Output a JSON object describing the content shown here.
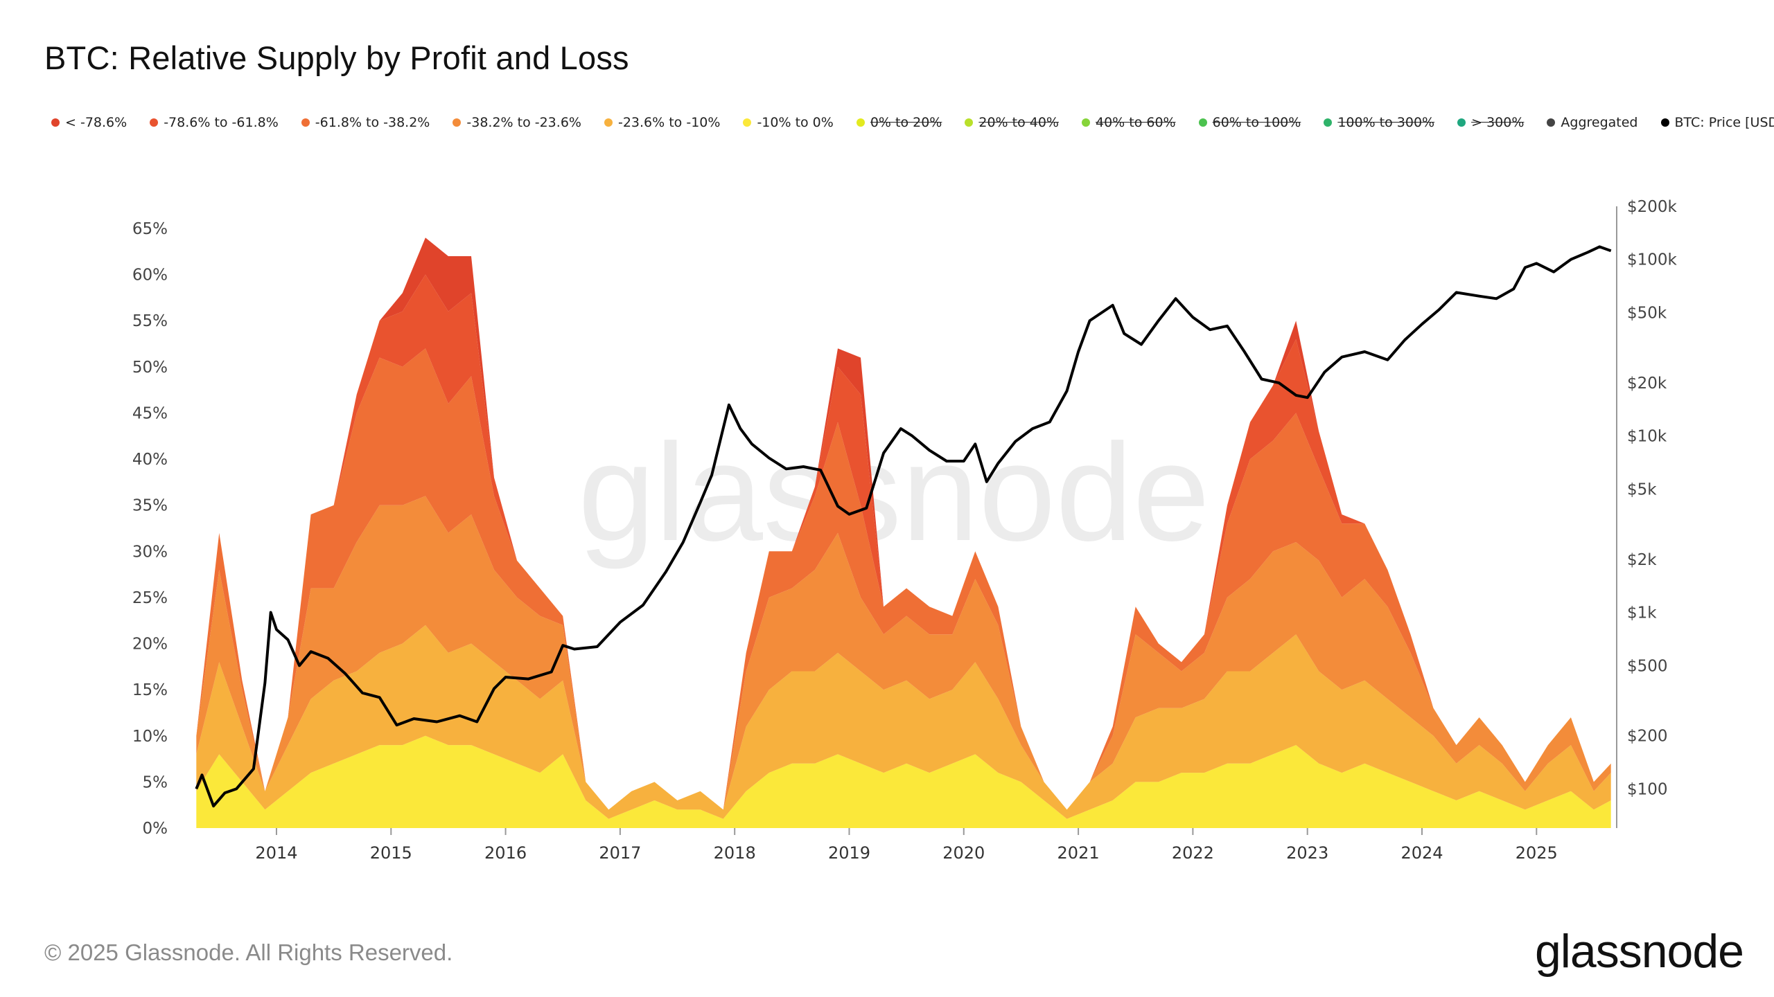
{
  "title": "BTC: Relative Supply by Profit and Loss",
  "footer": {
    "copyright": "© 2025 Glassnode. All Rights Reserved.",
    "brand": "glassnode"
  },
  "watermark": "glassnode",
  "legend": [
    {
      "label": "< -78.6%",
      "color": "#e0442b",
      "enabled": true
    },
    {
      "label": "-78.6% to -61.8%",
      "color": "#e9532f",
      "enabled": true
    },
    {
      "label": "-61.8% to -38.2%",
      "color": "#ef6f35",
      "enabled": true
    },
    {
      "label": "-38.2% to -23.6%",
      "color": "#f38c3a",
      "enabled": true
    },
    {
      "label": "-23.6% to -10%",
      "color": "#f7b13e",
      "enabled": true
    },
    {
      "label": "-10% to 0%",
      "color": "#fbe83a",
      "enabled": true
    },
    {
      "label": "0% to 20%",
      "color": "#e3ea1f",
      "enabled": false
    },
    {
      "label": "20% to 40%",
      "color": "#b9e02a",
      "enabled": false
    },
    {
      "label": "40% to 60%",
      "color": "#86d43a",
      "enabled": false
    },
    {
      "label": "60% to 100%",
      "color": "#4cc24f",
      "enabled": false
    },
    {
      "label": "100% to 300%",
      "color": "#2fb36a",
      "enabled": false
    },
    {
      "label": "> 300%",
      "color": "#1fa77f",
      "enabled": false
    },
    {
      "label": "Aggregated",
      "color": "#444444",
      "enabled": true
    },
    {
      "label": "BTC: Price [USD]",
      "color": "#000000",
      "enabled": true
    }
  ],
  "chart_data": {
    "type": "area",
    "stacked": true,
    "ylabel_left_ticks": [
      "0%",
      "5%",
      "10%",
      "15%",
      "20%",
      "25%",
      "30%",
      "35%",
      "40%",
      "45%",
      "50%",
      "55%",
      "60%",
      "65%"
    ],
    "ylim_left": [
      0,
      65
    ],
    "ylabel_right_ticks": [
      "$100",
      "$200",
      "$500",
      "$1k",
      "$2k",
      "$5k",
      "$10k",
      "$20k",
      "$50k",
      "$100k",
      "$200k"
    ],
    "ylim_right": [
      60,
      200000
    ],
    "right_axis_scale": "log",
    "x_ticks": [
      "2014",
      "2015",
      "2016",
      "2017",
      "2018",
      "2019",
      "2020",
      "2021",
      "2022",
      "2023",
      "2024",
      "2025"
    ],
    "xlim": [
      2013.25,
      2025.7
    ],
    "series": [
      {
        "name": "-10% to 0%",
        "x": [
          2013.3,
          2013.5,
          2013.7,
          2013.9,
          2014.1,
          2014.3,
          2014.5,
          2014.7,
          2014.9,
          2015.1,
          2015.3,
          2015.5,
          2015.7,
          2015.9,
          2016.1,
          2016.3,
          2016.5,
          2016.7,
          2016.9,
          2017.1,
          2017.3,
          2017.5,
          2017.7,
          2017.9,
          2018.1,
          2018.3,
          2018.5,
          2018.7,
          2018.9,
          2019.1,
          2019.3,
          2019.5,
          2019.7,
          2019.9,
          2020.1,
          2020.3,
          2020.5,
          2020.7,
          2020.9,
          2021.1,
          2021.3,
          2021.5,
          2021.7,
          2021.9,
          2022.1,
          2022.3,
          2022.5,
          2022.7,
          2022.9,
          2023.1,
          2023.3,
          2023.5,
          2023.7,
          2023.9,
          2024.1,
          2024.3,
          2024.5,
          2024.7,
          2024.9,
          2025.1,
          2025.3,
          2025.5,
          2025.65
        ],
        "values": [
          4,
          8,
          5,
          2,
          4,
          6,
          7,
          8,
          9,
          9,
          10,
          9,
          9,
          8,
          7,
          6,
          8,
          3,
          1,
          2,
          3,
          2,
          2,
          1,
          4,
          6,
          7,
          7,
          8,
          7,
          6,
          7,
          6,
          7,
          8,
          6,
          5,
          3,
          1,
          2,
          3,
          5,
          5,
          6,
          6,
          7,
          7,
          8,
          9,
          7,
          6,
          7,
          6,
          5,
          4,
          3,
          4,
          3,
          2,
          3,
          4,
          2,
          3
        ]
      },
      {
        "name": "-23.6% to -10%",
        "x": [
          2013.3,
          2013.5,
          2013.7,
          2013.9,
          2014.1,
          2014.3,
          2014.5,
          2014.7,
          2014.9,
          2015.1,
          2015.3,
          2015.5,
          2015.7,
          2015.9,
          2016.1,
          2016.3,
          2016.5,
          2016.7,
          2016.9,
          2017.1,
          2017.3,
          2017.5,
          2017.7,
          2017.9,
          2018.1,
          2018.3,
          2018.5,
          2018.7,
          2018.9,
          2019.1,
          2019.3,
          2019.5,
          2019.7,
          2019.9,
          2020.1,
          2020.3,
          2020.5,
          2020.7,
          2020.9,
          2021.1,
          2021.3,
          2021.5,
          2021.7,
          2021.9,
          2022.1,
          2022.3,
          2022.5,
          2022.7,
          2022.9,
          2023.1,
          2023.3,
          2023.5,
          2023.7,
          2023.9,
          2024.1,
          2024.3,
          2024.5,
          2024.7,
          2024.9,
          2025.1,
          2025.3,
          2025.5,
          2025.65
        ],
        "values": [
          4,
          10,
          6,
          2,
          5,
          8,
          9,
          9,
          10,
          11,
          12,
          10,
          11,
          10,
          9,
          8,
          8,
          2,
          1,
          2,
          2,
          1,
          2,
          1,
          7,
          9,
          10,
          10,
          11,
          10,
          9,
          9,
          8,
          8,
          10,
          8,
          4,
          2,
          1,
          3,
          4,
          7,
          8,
          7,
          8,
          10,
          10,
          11,
          12,
          10,
          9,
          9,
          8,
          7,
          6,
          4,
          5,
          4,
          2,
          4,
          5,
          2,
          3
        ]
      },
      {
        "name": "-38.2% to -23.6%",
        "x": [
          2013.3,
          2013.5,
          2013.7,
          2013.9,
          2014.1,
          2014.3,
          2014.5,
          2014.7,
          2014.9,
          2015.1,
          2015.3,
          2015.5,
          2015.7,
          2015.9,
          2016.1,
          2016.3,
          2016.5,
          2016.7,
          2016.9,
          2017.1,
          2017.3,
          2017.5,
          2017.7,
          2017.9,
          2018.1,
          2018.3,
          2018.5,
          2018.7,
          2018.9,
          2019.1,
          2019.3,
          2019.5,
          2019.7,
          2019.9,
          2020.1,
          2020.3,
          2020.5,
          2020.7,
          2020.9,
          2021.1,
          2021.3,
          2021.5,
          2021.7,
          2021.9,
          2022.1,
          2022.3,
          2022.5,
          2022.7,
          2022.9,
          2023.1,
          2023.3,
          2023.5,
          2023.7,
          2023.9,
          2024.1,
          2024.3,
          2024.5,
          2024.7,
          2024.9,
          2025.1,
          2025.3,
          2025.5,
          2025.65
        ],
        "values": [
          2,
          10,
          4,
          0,
          3,
          12,
          10,
          14,
          16,
          15,
          14,
          13,
          14,
          10,
          9,
          9,
          6,
          0,
          0,
          0,
          0,
          0,
          0,
          0,
          6,
          10,
          9,
          11,
          13,
          8,
          6,
          7,
          7,
          6,
          9,
          8,
          2,
          0,
          0,
          0,
          3,
          9,
          6,
          4,
          5,
          8,
          10,
          11,
          10,
          12,
          10,
          11,
          10,
          7,
          3,
          2,
          3,
          2,
          1,
          2,
          3,
          1,
          1
        ]
      },
      {
        "name": "-61.8% to -38.2%",
        "x": [
          2013.3,
          2013.5,
          2013.7,
          2013.9,
          2014.1,
          2014.3,
          2014.5,
          2014.7,
          2014.9,
          2015.1,
          2015.3,
          2015.5,
          2015.7,
          2015.9,
          2016.1,
          2016.3,
          2016.5,
          2016.7,
          2016.9,
          2017.1,
          2017.3,
          2017.5,
          2017.7,
          2017.9,
          2018.1,
          2018.3,
          2018.5,
          2018.7,
          2018.9,
          2019.1,
          2019.3,
          2019.5,
          2019.7,
          2019.9,
          2020.1,
          2020.3,
          2020.5,
          2020.7,
          2020.9,
          2021.1,
          2021.3,
          2021.5,
          2021.7,
          2021.9,
          2022.1,
          2022.3,
          2022.5,
          2022.7,
          2022.9,
          2023.1,
          2023.3,
          2023.5,
          2023.7,
          2023.9,
          2024.1,
          2024.3,
          2024.5,
          2024.7,
          2024.9,
          2025.1,
          2025.3,
          2025.5,
          2025.65
        ],
        "values": [
          0,
          4,
          1,
          0,
          0,
          8,
          9,
          14,
          16,
          15,
          16,
          14,
          15,
          8,
          4,
          3,
          1,
          0,
          0,
          0,
          0,
          0,
          0,
          0,
          2,
          5,
          4,
          8,
          12,
          10,
          3,
          3,
          3,
          2,
          3,
          2,
          0,
          0,
          0,
          0,
          1,
          3,
          1,
          1,
          2,
          8,
          13,
          12,
          14,
          10,
          8,
          6,
          4,
          2,
          0,
          0,
          0,
          0,
          0,
          0,
          0,
          0,
          0
        ]
      },
      {
        "name": "-78.6% to -61.8%",
        "x": [
          2013.3,
          2013.5,
          2013.7,
          2013.9,
          2014.1,
          2014.3,
          2014.5,
          2014.7,
          2014.9,
          2015.1,
          2015.3,
          2015.5,
          2015.7,
          2015.9,
          2016.1,
          2016.3,
          2016.5,
          2016.7,
          2016.9,
          2017.1,
          2017.3,
          2017.5,
          2017.7,
          2017.9,
          2018.1,
          2018.3,
          2018.5,
          2018.7,
          2018.9,
          2019.1,
          2019.3,
          2019.5,
          2019.7,
          2019.9,
          2020.1,
          2020.3,
          2020.5,
          2020.7,
          2020.9,
          2021.1,
          2021.3,
          2021.5,
          2021.7,
          2021.9,
          2022.1,
          2022.3,
          2022.5,
          2022.7,
          2022.9,
          2023.1,
          2023.3,
          2023.5,
          2023.7,
          2023.9,
          2024.1,
          2024.3,
          2024.5,
          2024.7,
          2024.9,
          2025.1,
          2025.3,
          2025.5,
          2025.65
        ],
        "values": [
          0,
          0,
          0,
          0,
          0,
          0,
          0,
          2,
          4,
          6,
          8,
          10,
          9,
          2,
          0,
          0,
          0,
          0,
          0,
          0,
          0,
          0,
          0,
          0,
          0,
          0,
          0,
          1,
          6,
          12,
          0,
          0,
          0,
          0,
          0,
          0,
          0,
          0,
          0,
          0,
          0,
          0,
          0,
          0,
          0,
          2,
          4,
          6,
          8,
          4,
          1,
          0,
          0,
          0,
          0,
          0,
          0,
          0,
          0,
          0,
          0,
          0,
          0
        ]
      },
      {
        "name": "< -78.6%",
        "x": [
          2013.3,
          2013.5,
          2013.7,
          2013.9,
          2014.1,
          2014.3,
          2014.5,
          2014.7,
          2014.9,
          2015.1,
          2015.3,
          2015.5,
          2015.7,
          2015.9,
          2016.1,
          2016.3,
          2016.5,
          2016.7,
          2016.9,
          2017.1,
          2017.3,
          2017.5,
          2017.7,
          2017.9,
          2018.1,
          2018.3,
          2018.5,
          2018.7,
          2018.9,
          2019.1,
          2019.3,
          2019.5,
          2019.7,
          2019.9,
          2020.1,
          2020.3,
          2020.5,
          2020.7,
          2020.9,
          2021.1,
          2021.3,
          2021.5,
          2021.7,
          2021.9,
          2022.1,
          2022.3,
          2022.5,
          2022.7,
          2022.9,
          2023.1,
          2023.3,
          2023.5,
          2023.7,
          2023.9,
          2024.1,
          2024.3,
          2024.5,
          2024.7,
          2024.9,
          2025.1,
          2025.3,
          2025.5,
          2025.65
        ],
        "values": [
          0,
          0,
          0,
          0,
          0,
          0,
          0,
          0,
          0,
          2,
          4,
          6,
          4,
          0,
          0,
          0,
          0,
          0,
          0,
          0,
          0,
          0,
          0,
          0,
          0,
          0,
          0,
          0,
          2,
          4,
          0,
          0,
          0,
          0,
          0,
          0,
          0,
          0,
          0,
          0,
          0,
          0,
          0,
          0,
          0,
          0,
          0,
          0,
          2,
          0,
          0,
          0,
          0,
          0,
          0,
          0,
          0,
          0,
          0,
          0,
          0,
          0,
          0
        ]
      }
    ],
    "price_series": {
      "name": "BTC: Price [USD]",
      "x": [
        2013.3,
        2013.35,
        2013.45,
        2013.55,
        2013.65,
        2013.8,
        2013.9,
        2013.95,
        2014.0,
        2014.1,
        2014.2,
        2014.3,
        2014.45,
        2014.6,
        2014.75,
        2014.9,
        2015.05,
        2015.2,
        2015.4,
        2015.6,
        2015.75,
        2015.9,
        2016.0,
        2016.2,
        2016.4,
        2016.5,
        2016.6,
        2016.8,
        2017.0,
        2017.2,
        2017.4,
        2017.55,
        2017.7,
        2017.8,
        2017.95,
        2018.05,
        2018.15,
        2018.3,
        2018.45,
        2018.6,
        2018.75,
        2018.9,
        2019.0,
        2019.15,
        2019.3,
        2019.45,
        2019.55,
        2019.7,
        2019.85,
        2020.0,
        2020.1,
        2020.2,
        2020.3,
        2020.45,
        2020.6,
        2020.75,
        2020.9,
        2021.0,
        2021.1,
        2021.3,
        2021.4,
        2021.55,
        2021.7,
        2021.85,
        2022.0,
        2022.15,
        2022.3,
        2022.45,
        2022.6,
        2022.75,
        2022.9,
        2023.0,
        2023.15,
        2023.3,
        2023.5,
        2023.7,
        2023.85,
        2024.0,
        2024.15,
        2024.3,
        2024.5,
        2024.65,
        2024.8,
        2024.9,
        2025.0,
        2025.15,
        2025.3,
        2025.45,
        2025.55,
        2025.65
      ],
      "values": [
        100,
        120,
        80,
        95,
        100,
        130,
        400,
        1000,
        800,
        700,
        500,
        600,
        550,
        450,
        350,
        330,
        230,
        250,
        240,
        260,
        240,
        370,
        430,
        420,
        460,
        650,
        620,
        640,
        880,
        1100,
        1700,
        2500,
        4200,
        6000,
        15000,
        11000,
        9000,
        7500,
        6500,
        6700,
        6400,
        4000,
        3600,
        3900,
        8000,
        11000,
        10000,
        8300,
        7200,
        7200,
        9000,
        5500,
        7000,
        9300,
        11000,
        12000,
        18000,
        30000,
        45000,
        55000,
        38000,
        33000,
        45000,
        60000,
        47000,
        40000,
        42000,
        30000,
        21000,
        20000,
        17000,
        16500,
        23000,
        28000,
        30000,
        27000,
        35000,
        43000,
        52000,
        65000,
        62000,
        60000,
        68000,
        90000,
        95000,
        85000,
        100000,
        110000,
        118000,
        112000
      ]
    }
  }
}
